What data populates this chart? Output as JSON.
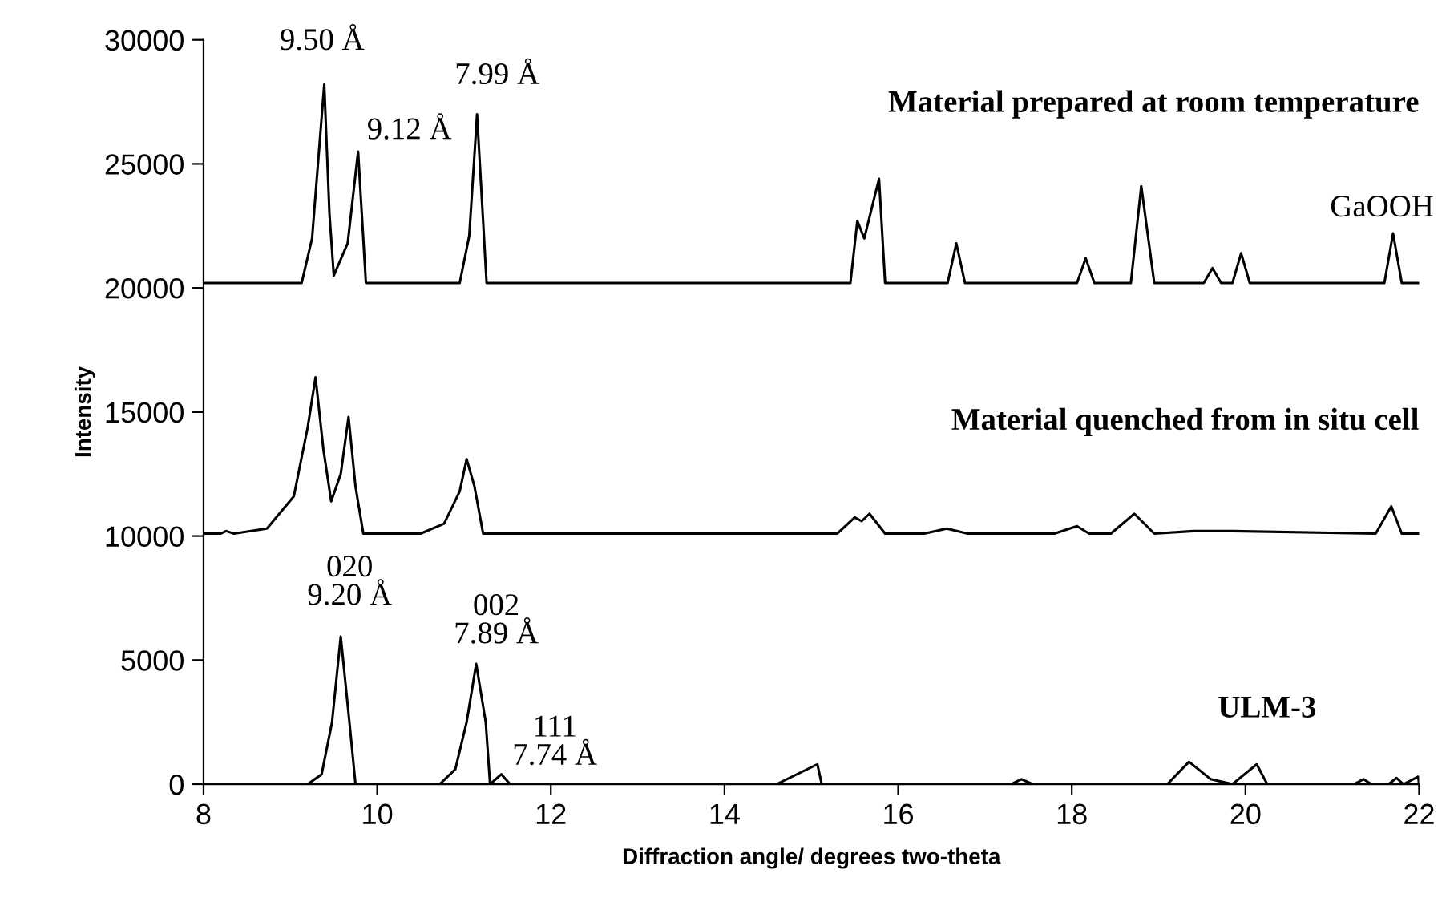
{
  "chart_data": {
    "type": "line",
    "xlabel": "Diffraction angle/ degrees two-theta",
    "ylabel": "Intensity",
    "xlim": [
      8,
      22
    ],
    "ylim": [
      0,
      30000
    ],
    "xticks": [
      8,
      10,
      12,
      14,
      16,
      18,
      20,
      22
    ],
    "yticks": [
      0,
      5000,
      10000,
      15000,
      20000,
      25000,
      30000
    ],
    "grid": false,
    "legend": false,
    "marker": "none",
    "line_style": "solid",
    "series": [
      {
        "name": "Material prepared at room temperature",
        "color": "#000000",
        "x": [
          8.0,
          9.13,
          9.25,
          9.39,
          9.45,
          9.5,
          9.66,
          9.78,
          9.87,
          10.95,
          11.06,
          11.15,
          11.26,
          15.45,
          15.53,
          15.61,
          15.78,
          15.85,
          16.57,
          16.67,
          16.77,
          18.06,
          18.16,
          18.26,
          18.68,
          18.8,
          18.95,
          19.52,
          19.62,
          19.72,
          19.85,
          19.95,
          20.05,
          21.6,
          21.7,
          21.8,
          22.0
        ],
        "values": [
          20200,
          20200,
          22000,
          28200,
          23000,
          20500,
          21800,
          25500,
          20200,
          20200,
          22100,
          27000,
          20200,
          20200,
          22700,
          22000,
          24400,
          20200,
          20200,
          21800,
          20200,
          20200,
          21200,
          20200,
          20200,
          24100,
          20200,
          20200,
          20800,
          20200,
          20200,
          21400,
          20200,
          20200,
          22200,
          20200,
          20200
        ]
      },
      {
        "name": "Material quenched from in situ cell",
        "color": "#000000",
        "x": [
          8.0,
          8.2,
          8.26,
          8.35,
          8.73,
          9.04,
          9.2,
          9.29,
          9.38,
          9.47,
          9.58,
          9.67,
          9.75,
          9.84,
          10.5,
          10.77,
          10.95,
          11.03,
          11.12,
          11.22,
          15.3,
          15.5,
          15.58,
          15.67,
          15.85,
          16.3,
          16.56,
          16.8,
          17.8,
          18.06,
          18.2,
          18.45,
          18.72,
          18.95,
          19.4,
          19.85,
          21.5,
          21.68,
          21.8,
          22.0
        ],
        "values": [
          10100,
          10100,
          10200,
          10100,
          10300,
          11600,
          14400,
          16400,
          13500,
          11400,
          12500,
          14800,
          12000,
          10100,
          10100,
          10500,
          11800,
          13100,
          12000,
          10100,
          10100,
          10750,
          10600,
          10900,
          10100,
          10100,
          10300,
          10100,
          10100,
          10400,
          10100,
          10100,
          10900,
          10100,
          10200,
          10200,
          10100,
          11200,
          10100,
          10100
        ]
      },
      {
        "name": "ULM-3",
        "color": "#000000",
        "x": [
          8.0,
          9.2,
          9.36,
          9.48,
          9.58,
          9.68,
          9.75,
          10.72,
          10.9,
          11.03,
          11.14,
          11.25,
          11.3,
          11.43,
          11.53,
          14.6,
          15.07,
          15.12,
          17.3,
          17.42,
          17.55,
          19.1,
          19.35,
          19.6,
          19.85,
          20.13,
          20.25,
          21.25,
          21.36,
          21.45,
          21.65,
          21.74,
          21.82,
          21.99,
          22.0
        ],
        "values": [
          0,
          0,
          400,
          2500,
          5950,
          2500,
          0,
          0,
          600,
          2500,
          4850,
          2500,
          0,
          400,
          0,
          0,
          800,
          0,
          0,
          200,
          0,
          0,
          900,
          200,
          0,
          800,
          0,
          0,
          200,
          0,
          0,
          250,
          0,
          300,
          0
        ]
      }
    ],
    "annotations": [
      {
        "text": "9.50 Å",
        "x": 9.39,
        "y": 28200
      },
      {
        "text": "9.12 Å",
        "x": 9.78,
        "y": 25500
      },
      {
        "text": "7.99 Å",
        "x": 11.15,
        "y": 27000
      },
      {
        "text": "GaOOH",
        "x": 21.7,
        "y": 22200
      },
      {
        "text": "020\n9.20 Å",
        "x": 9.58,
        "y": 5950
      },
      {
        "text": "002\n7.89 Å",
        "x": 11.14,
        "y": 4850
      },
      {
        "text": "111\n7.74 Å",
        "x": 11.43,
        "y": 400
      }
    ]
  }
}
